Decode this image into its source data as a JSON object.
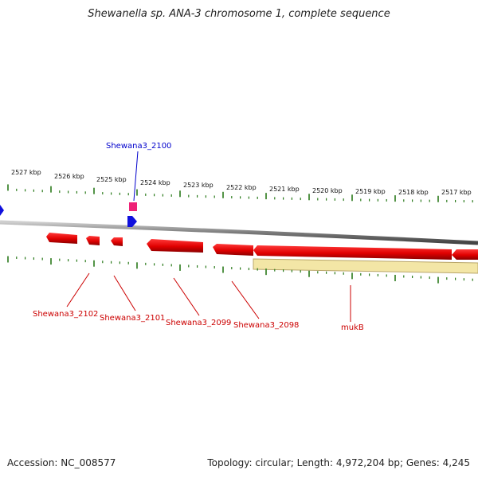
{
  "title": "Shewanella sp. ANA-3 chromosome 1, complete sequence",
  "footer": {
    "accession": "Accession: NC_008577",
    "topology": "Topology: circular; Length: 4,972,204 bp; Genes: 4,245"
  },
  "scale_labels": [
    "2527 kbp",
    "2526 kbp",
    "2525 kbp",
    "2524 kbp",
    "2523 kbp",
    "2522 kbp",
    "2521 kbp",
    "2520 kbp",
    "2519 kbp",
    "2518 kbp",
    "2517 kbp"
  ],
  "gene_labels": [
    {
      "text": "Shewana3_2100",
      "color": "#0000cc"
    },
    {
      "text": "Shewana3_2102",
      "color": "#cc0000"
    },
    {
      "text": "Shewana3_2101",
      "color": "#cc0000"
    },
    {
      "text": "Shewana3_2099",
      "color": "#cc0000"
    },
    {
      "text": "Shewana3_2098",
      "color": "#cc0000"
    },
    {
      "text": "mukB",
      "color": "#cc0000"
    }
  ],
  "colors": {
    "forward_gene": "#e00000",
    "small_forward": "#1010dd",
    "pink_feature": "#ee2277",
    "tick": "#2a7a1a",
    "backbone": "#888888",
    "highlight": "#f3e6a6"
  }
}
